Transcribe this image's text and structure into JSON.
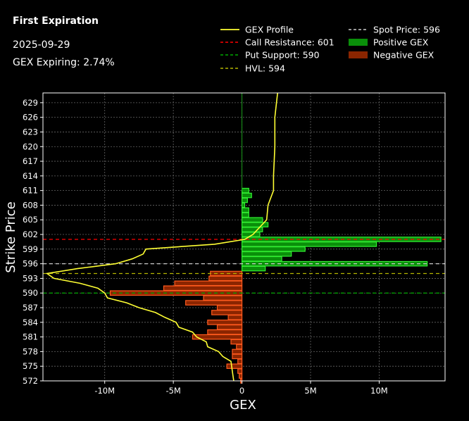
{
  "header": {
    "title": "First Expiration",
    "date": "2025-09-29",
    "gex_expiring": "GEX Expiring: 2.74%"
  },
  "colors": {
    "background": "#000000",
    "profile": "#ffff33",
    "call_resistance": "#ff0000",
    "put_support": "#00aa00",
    "hvl": "#b5b500",
    "spot": "#cccccc",
    "positive_gex": "#0a8f0a",
    "negative_gex": "#8b2500"
  },
  "chart_data": {
    "type": "bar",
    "orientation": "horizontal",
    "xlabel": "GEX",
    "ylabel": "Strike Price",
    "xlim": [
      -14500000,
      14800000
    ],
    "ylim": [
      572,
      631
    ],
    "x_ticks": [
      -10000000,
      -5000000,
      0,
      5000000,
      10000000
    ],
    "x_tick_labels": [
      "-10M",
      "-5M",
      "0",
      "5M",
      "10M"
    ],
    "y_ticks": [
      572,
      575,
      578,
      581,
      584,
      587,
      590,
      593,
      596,
      599,
      602,
      605,
      608,
      611,
      614,
      617,
      620,
      623,
      626,
      629
    ],
    "grid": true,
    "legend_position": "top",
    "legend": [
      {
        "label": "GEX Profile",
        "style": "line",
        "color": "#ffff33"
      },
      {
        "label": "Call Resistance: 601",
        "style": "dash",
        "color": "#ff0000"
      },
      {
        "label": "Put Support: 590",
        "style": "dash",
        "color": "#00aa00"
      },
      {
        "label": "HVL: 594",
        "style": "dash",
        "color": "#b5b500"
      },
      {
        "label": "Spot Price: 596",
        "style": "dash",
        "color": "#cccccc"
      },
      {
        "label": "Positive GEX",
        "style": "patch",
        "color": "#0a8f0a"
      },
      {
        "label": "Negative GEX",
        "style": "patch",
        "color": "#8b2500"
      }
    ],
    "levels": {
      "call_resistance": 601,
      "put_support": 590,
      "hvl": 594,
      "spot": 596
    },
    "bars": {
      "strikes": [
        572,
        573,
        574,
        575,
        576,
        577,
        578,
        579,
        580,
        581,
        582,
        583,
        584,
        585,
        586,
        587,
        588,
        589,
        590,
        591,
        592,
        593,
        594,
        595,
        596,
        597,
        598,
        599,
        600,
        601,
        602,
        603,
        604,
        605,
        606,
        607,
        608,
        609,
        610,
        611
      ],
      "values": [
        -100000,
        -200000,
        -300000,
        -1100000,
        -300000,
        -700000,
        -700000,
        -400000,
        -800000,
        -3600000,
        -2500000,
        -1800000,
        -2500000,
        -1000000,
        -2200000,
        -1800000,
        -4100000,
        -2800000,
        -9600000,
        -5700000,
        -4900000,
        -2400000,
        -2300000,
        1700000,
        13500000,
        2900000,
        3600000,
        4600000,
        9800000,
        14500000,
        1300000,
        1500000,
        1900000,
        1500000,
        500000,
        500000,
        200000,
        400000,
        700000,
        500000
      ]
    },
    "profile": {
      "strikes": [
        572,
        574,
        576,
        577,
        578,
        579,
        580,
        581,
        582,
        583,
        584,
        585,
        586,
        587,
        588,
        589,
        590,
        591,
        592,
        593,
        594,
        595,
        596,
        597,
        598,
        599,
        600,
        601,
        602,
        605,
        608,
        611,
        614,
        620,
        626,
        631
      ],
      "values": [
        -600000,
        -700000,
        -800000,
        -1400000,
        -1700000,
        -2500000,
        -2600000,
        -3300000,
        -3600000,
        -4600000,
        -4800000,
        -5600000,
        -6300000,
        -7500000,
        -8400000,
        -9800000,
        -10000000,
        -10500000,
        -11800000,
        -13700000,
        -14200000,
        -12000000,
        -9200000,
        -8000000,
        -7200000,
        -7000000,
        -2000000,
        200000,
        800000,
        1800000,
        1900000,
        2300000,
        2300000,
        2400000,
        2400000,
        2600000
      ]
    }
  }
}
